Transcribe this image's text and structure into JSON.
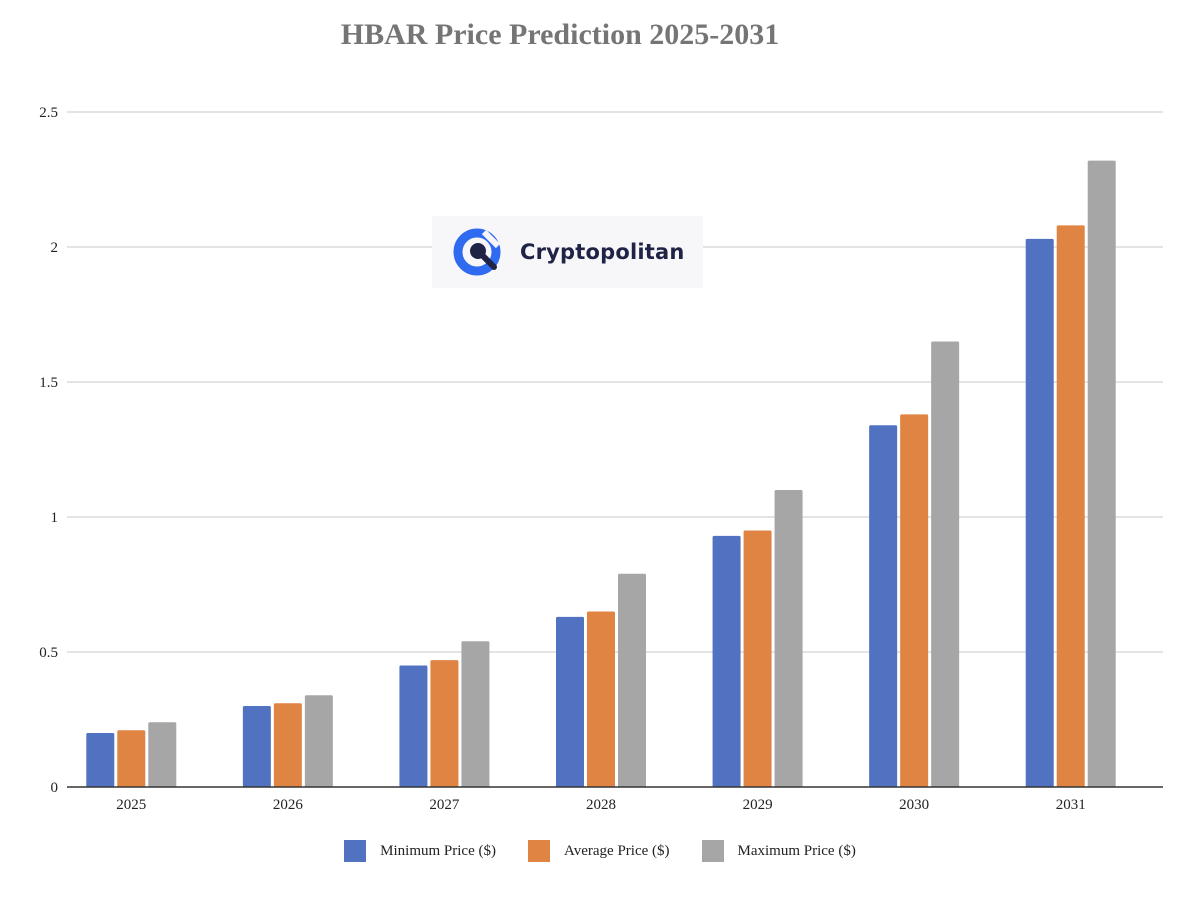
{
  "chart_data": {
    "type": "bar",
    "title": "HBAR Price Prediction 2025-2031",
    "categories": [
      "2025",
      "2026",
      "2027",
      "2028",
      "2029",
      "2030",
      "2031"
    ],
    "series": [
      {
        "name": "Minimum Price ($)",
        "color": "#5072c0",
        "values": [
          0.2,
          0.3,
          0.45,
          0.63,
          0.93,
          1.34,
          2.03
        ]
      },
      {
        "name": "Average Price ($)",
        "color": "#e08443",
        "values": [
          0.21,
          0.31,
          0.47,
          0.65,
          0.95,
          1.38,
          2.08
        ]
      },
      {
        "name": "Maximum Price ($)",
        "color": "#a6a6a6",
        "values": [
          0.24,
          0.34,
          0.54,
          0.79,
          1.1,
          1.65,
          2.32
        ]
      }
    ],
    "yticks": [
      "0",
      "0.5",
      "1",
      "1.5",
      "2",
      "2.5"
    ],
    "ylim": [
      0,
      2.5
    ],
    "grid": true,
    "legend_position": "bottom"
  },
  "watermark": {
    "text": "Cryptopolitan",
    "icon": "cryptopolitan-logo-icon"
  }
}
